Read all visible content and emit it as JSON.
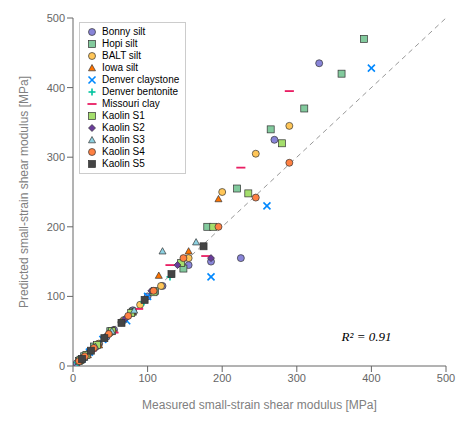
{
  "chart_data": {
    "type": "scatter",
    "xlabel": "Measured small-strain shear modulus [MPa]",
    "ylabel": "Predicted small-strain shear modulus [MPa]",
    "xlim": [
      0,
      500
    ],
    "ylim": [
      0,
      500
    ],
    "xticks": [
      0,
      100,
      200,
      300,
      400,
      500
    ],
    "yticks": [
      0,
      100,
      200,
      300,
      400,
      500
    ],
    "grid": false,
    "legend": "upper left",
    "annotation": "R² = 0.91",
    "identity_line": {
      "x": [
        0,
        500
      ],
      "y": [
        0,
        500
      ]
    },
    "series": [
      {
        "name": "Bonny silt",
        "marker": "circle",
        "color": "#8884d8",
        "x": [
          5,
          8,
          10,
          12,
          15,
          18,
          22,
          28,
          35,
          45,
          55,
          65,
          80,
          100,
          120,
          155,
          185,
          225,
          270,
          330
        ],
        "y": [
          4,
          6,
          8,
          10,
          12,
          16,
          20,
          25,
          32,
          42,
          52,
          63,
          80,
          100,
          115,
          145,
          150,
          155,
          325,
          435
        ]
      },
      {
        "name": "Hopi silt",
        "marker": "square",
        "color": "#82ca9d",
        "x": [
          8,
          15,
          28,
          50,
          80,
          110,
          148,
          180,
          220,
          265,
          310,
          360,
          390
        ],
        "y": [
          7,
          14,
          28,
          50,
          78,
          108,
          140,
          200,
          255,
          340,
          370,
          420,
          470
        ]
      },
      {
        "name": "BALT silt",
        "marker": "circle",
        "color": "#ffc658",
        "x": [
          8,
          14,
          22,
          34,
          50,
          68,
          90,
          118,
          155,
          200,
          245,
          290
        ],
        "y": [
          7,
          12,
          20,
          32,
          48,
          66,
          88,
          115,
          155,
          250,
          305,
          345
        ]
      },
      {
        "name": "Iowa silt",
        "marker": "triangle",
        "color": "#ff7300",
        "x": [
          10,
          20,
          35,
          55,
          80,
          115,
          155,
          195
        ],
        "y": [
          8,
          16,
          30,
          52,
          78,
          130,
          165,
          240
        ]
      },
      {
        "name": "Denver claystone",
        "marker": "x",
        "color": "#0088fe",
        "x": [
          12,
          22,
          40,
          72,
          100,
          185,
          260,
          400
        ],
        "y": [
          10,
          20,
          38,
          65,
          100,
          128,
          230,
          428
        ]
      },
      {
        "name": "Denver bentonite",
        "marker": "plus",
        "color": "#00c49f",
        "x": [
          6,
          12,
          20,
          30,
          46,
          68,
          95,
          130
        ],
        "y": [
          5,
          10,
          18,
          28,
          44,
          66,
          92,
          128
        ]
      },
      {
        "name": "Missouri clay",
        "marker": "hline",
        "color": "#e91e63",
        "x": [
          25,
          55,
          88,
          130,
          178,
          225,
          290
        ],
        "y": [
          22,
          48,
          82,
          145,
          158,
          285,
          395
        ]
      },
      {
        "name": "Kaolin S1",
        "marker": "square",
        "color": "#a4de6c",
        "x": [
          10,
          18,
          32,
          52,
          78,
          108,
          145,
          188,
          235,
          280
        ],
        "y": [
          9,
          16,
          30,
          50,
          76,
          106,
          148,
          200,
          248,
          320
        ]
      },
      {
        "name": "Kaolin S2",
        "marker": "diamond",
        "color": "#6a3d9a",
        "x": [
          12,
          24,
          44,
          70,
          105,
          140,
          185
        ],
        "y": [
          10,
          22,
          42,
          68,
          108,
          145,
          155
        ]
      },
      {
        "name": "Kaolin S3",
        "marker": "triangle",
        "color": "#8dd1e1",
        "x": [
          15,
          30,
          52,
          82,
          120,
          165
        ],
        "y": [
          12,
          28,
          50,
          80,
          165,
          178
        ]
      },
      {
        "name": "Kaolin S4",
        "marker": "circle",
        "color": "#ff8042",
        "x": [
          8,
          16,
          28,
          48,
          74,
          108,
          148,
          195,
          245,
          290
        ],
        "y": [
          7,
          14,
          26,
          46,
          72,
          108,
          155,
          200,
          242,
          292
        ]
      },
      {
        "name": "Kaolin S5",
        "marker": "square",
        "color": "#444444",
        "x": [
          12,
          24,
          42,
          65,
          96,
          132,
          175
        ],
        "y": [
          10,
          22,
          40,
          62,
          95,
          132,
          172
        ]
      }
    ]
  }
}
